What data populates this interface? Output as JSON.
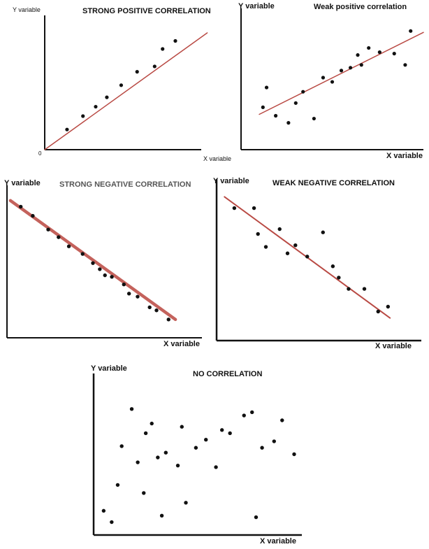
{
  "chart_data": [
    {
      "type": "scatter",
      "title": "STRONG POSITIVE CORRELATION",
      "xlabel": "X variable",
      "ylabel": "Y variable",
      "origin_label": "0",
      "xlim": [
        0,
        10
      ],
      "ylim": [
        0,
        10
      ],
      "trend": {
        "x": [
          0,
          10.2
        ],
        "y": [
          0,
          8.7
        ]
      },
      "x": [
        1.4,
        2.4,
        3.2,
        3.9,
        4.8,
        5.8,
        6.9,
        7.4,
        8.2
      ],
      "y": [
        1.5,
        2.5,
        3.2,
        3.9,
        4.8,
        5.8,
        6.2,
        7.5,
        8.1
      ]
    },
    {
      "type": "scatter",
      "title": "Weak positive correlation",
      "xlabel": "X variable",
      "ylabel": "Y variable",
      "xlim": [
        0,
        10
      ],
      "ylim": [
        0,
        10
      ],
      "trend": {
        "x": [
          1,
          10
        ],
        "y": [
          2.5,
          8.3
        ]
      },
      "x": [
        1.2,
        1.4,
        1.9,
        2.6,
        3.0,
        3.4,
        4.0,
        4.5,
        5.0,
        5.5,
        6.0,
        6.4,
        6.6,
        7.0,
        7.6,
        8.4,
        9.0,
        9.3
      ],
      "y": [
        3.0,
        4.4,
        2.4,
        1.9,
        3.3,
        4.1,
        2.2,
        5.1,
        4.8,
        5.6,
        5.8,
        6.7,
        6.0,
        7.2,
        6.9,
        6.8,
        6.0,
        8.4
      ]
    },
    {
      "type": "scatter",
      "title": "STRONG NEGATIVE CORRELATION",
      "xlabel": "X variable",
      "ylabel": "Y variable",
      "xlim": [
        0,
        10
      ],
      "ylim": [
        0,
        10
      ],
      "trend": {
        "x": [
          0.2,
          9.8
        ],
        "y": [
          9.0,
          1.2
        ]
      },
      "x": [
        0.8,
        1.5,
        2.4,
        3.0,
        3.6,
        4.4,
        5.0,
        5.4,
        5.7,
        6.1,
        6.8,
        7.1,
        7.6,
        8.3,
        8.7,
        9.4
      ],
      "y": [
        8.6,
        8.0,
        7.1,
        6.6,
        6.0,
        5.5,
        4.9,
        4.5,
        4.1,
        4.0,
        3.5,
        2.9,
        2.7,
        2.0,
        1.8,
        1.2
      ]
    },
    {
      "type": "scatter",
      "title": "WEAK NEGATIVE CORRELATION",
      "xlabel": "X variable",
      "ylabel": "Y variable",
      "xlim": [
        0,
        10
      ],
      "ylim": [
        0,
        10
      ],
      "trend": {
        "x": [
          0.4,
          8.8
        ],
        "y": [
          8.9,
          1.4
        ]
      },
      "x": [
        0.9,
        1.9,
        2.1,
        2.5,
        3.2,
        3.6,
        4.0,
        4.6,
        5.4,
        5.9,
        6.2,
        6.7,
        7.5,
        8.2,
        8.7
      ],
      "y": [
        8.2,
        8.2,
        6.6,
        5.8,
        6.9,
        5.4,
        5.9,
        5.2,
        6.7,
        4.6,
        3.9,
        3.2,
        3.2,
        1.8,
        2.1
      ]
    },
    {
      "type": "scatter",
      "title": "NO CORRELATION",
      "xlabel": "X variable",
      "ylabel": "Y variable",
      "xlim": [
        0,
        10
      ],
      "ylim": [
        0,
        10
      ],
      "x": [
        0.5,
        0.9,
        1.2,
        1.4,
        1.9,
        2.2,
        2.5,
        2.6,
        2.9,
        3.2,
        3.4,
        3.6,
        4.2,
        4.4,
        4.6,
        5.1,
        5.6,
        6.1,
        6.4,
        6.8,
        7.5,
        7.9,
        8.1,
        8.4,
        9.0,
        9.4,
        10.0
      ],
      "y": [
        1.5,
        0.8,
        3.1,
        5.5,
        7.8,
        4.5,
        2.6,
        6.3,
        6.9,
        4.8,
        1.2,
        5.1,
        4.3,
        6.7,
        2.0,
        5.4,
        5.9,
        4.2,
        6.5,
        6.3,
        7.4,
        7.6,
        1.1,
        5.4,
        5.8,
        7.1,
        5.0
      ]
    }
  ]
}
